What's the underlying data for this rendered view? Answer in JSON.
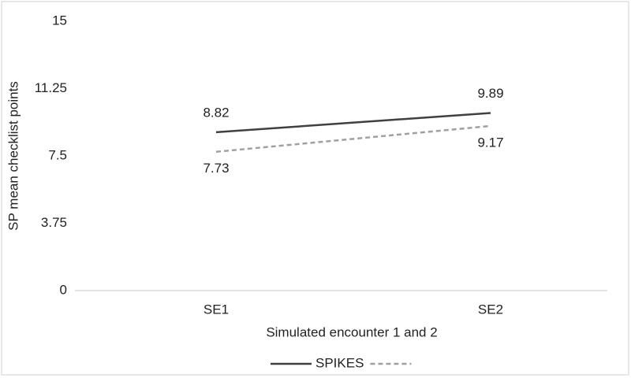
{
  "chart_data": {
    "type": "line",
    "y_label": "SP mean checklist points",
    "x_label": "Simulated encounter 1 and 2",
    "categories": [
      "SE1",
      "SE2"
    ],
    "series": [
      {
        "name": "SPIKES",
        "color": "#404040",
        "dash": false,
        "values": [
          8.82,
          9.89
        ]
      },
      {
        "color": "#a0a0a0",
        "dash": true,
        "values": [
          7.73,
          9.17
        ]
      }
    ],
    "ylim": [
      0,
      15
    ],
    "yticks": [
      0,
      3.75,
      7.5,
      11.25,
      15
    ],
    "grid": false,
    "legend": "bottom"
  }
}
